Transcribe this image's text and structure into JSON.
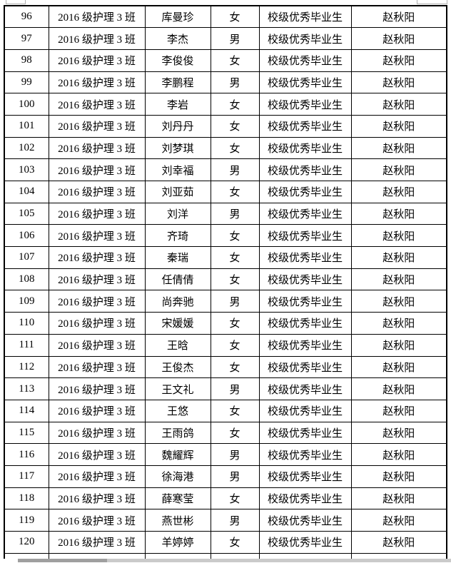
{
  "page": {
    "background": "#ffffff",
    "text_color": "#000000",
    "table_border_color": "#000000"
  },
  "table": {
    "rows": [
      {
        "no": "96",
        "class_name": "2016 级护理 3 班",
        "name": "库曼珍",
        "gender": "女",
        "award": "校级优秀毕业生",
        "advisor": "赵秋阳"
      },
      {
        "no": "97",
        "class_name": "2016 级护理 3 班",
        "name": "李杰",
        "gender": "男",
        "award": "校级优秀毕业生",
        "advisor": "赵秋阳"
      },
      {
        "no": "98",
        "class_name": "2016 级护理 3 班",
        "name": "李俊俊",
        "gender": "女",
        "award": "校级优秀毕业生",
        "advisor": "赵秋阳"
      },
      {
        "no": "99",
        "class_name": "2016 级护理 3 班",
        "name": "李鹏程",
        "gender": "男",
        "award": "校级优秀毕业生",
        "advisor": "赵秋阳"
      },
      {
        "no": "100",
        "class_name": "2016 级护理 3 班",
        "name": "李岩",
        "gender": "女",
        "award": "校级优秀毕业生",
        "advisor": "赵秋阳"
      },
      {
        "no": "101",
        "class_name": "2016 级护理 3 班",
        "name": "刘丹丹",
        "gender": "女",
        "award": "校级优秀毕业生",
        "advisor": "赵秋阳"
      },
      {
        "no": "102",
        "class_name": "2016 级护理 3 班",
        "name": "刘梦琪",
        "gender": "女",
        "award": "校级优秀毕业生",
        "advisor": "赵秋阳"
      },
      {
        "no": "103",
        "class_name": "2016 级护理 3 班",
        "name": "刘幸福",
        "gender": "男",
        "award": "校级优秀毕业生",
        "advisor": "赵秋阳"
      },
      {
        "no": "104",
        "class_name": "2016 级护理 3 班",
        "name": "刘亚茹",
        "gender": "女",
        "award": "校级优秀毕业生",
        "advisor": "赵秋阳"
      },
      {
        "no": "105",
        "class_name": "2016 级护理 3 班",
        "name": "刘洋",
        "gender": "男",
        "award": "校级优秀毕业生",
        "advisor": "赵秋阳"
      },
      {
        "no": "106",
        "class_name": "2016 级护理 3 班",
        "name": "齐琦",
        "gender": "女",
        "award": "校级优秀毕业生",
        "advisor": "赵秋阳"
      },
      {
        "no": "107",
        "class_name": "2016 级护理 3 班",
        "name": "秦瑞",
        "gender": "女",
        "award": "校级优秀毕业生",
        "advisor": "赵秋阳"
      },
      {
        "no": "108",
        "class_name": "2016 级护理 3 班",
        "name": "任倩倩",
        "gender": "女",
        "award": "校级优秀毕业生",
        "advisor": "赵秋阳"
      },
      {
        "no": "109",
        "class_name": "2016 级护理 3 班",
        "name": "尚奔驰",
        "gender": "男",
        "award": "校级优秀毕业生",
        "advisor": "赵秋阳"
      },
      {
        "no": "110",
        "class_name": "2016 级护理 3 班",
        "name": "宋媛媛",
        "gender": "女",
        "award": "校级优秀毕业生",
        "advisor": "赵秋阳"
      },
      {
        "no": "111",
        "class_name": "2016 级护理 3 班",
        "name": "王晗",
        "gender": "女",
        "award": "校级优秀毕业生",
        "advisor": "赵秋阳"
      },
      {
        "no": "112",
        "class_name": "2016 级护理 3 班",
        "name": "王俊杰",
        "gender": "女",
        "award": "校级优秀毕业生",
        "advisor": "赵秋阳"
      },
      {
        "no": "113",
        "class_name": "2016 级护理 3 班",
        "name": "王文礼",
        "gender": "男",
        "award": "校级优秀毕业生",
        "advisor": "赵秋阳"
      },
      {
        "no": "114",
        "class_name": "2016 级护理 3 班",
        "name": "王悠",
        "gender": "女",
        "award": "校级优秀毕业生",
        "advisor": "赵秋阳"
      },
      {
        "no": "115",
        "class_name": "2016 级护理 3 班",
        "name": "王雨鸽",
        "gender": "女",
        "award": "校级优秀毕业生",
        "advisor": "赵秋阳"
      },
      {
        "no": "116",
        "class_name": "2016 级护理 3 班",
        "name": "魏耀辉",
        "gender": "男",
        "award": "校级优秀毕业生",
        "advisor": "赵秋阳"
      },
      {
        "no": "117",
        "class_name": "2016 级护理 3 班",
        "name": "徐海港",
        "gender": "男",
        "award": "校级优秀毕业生",
        "advisor": "赵秋阳"
      },
      {
        "no": "118",
        "class_name": "2016 级护理 3 班",
        "name": "薛寒莹",
        "gender": "女",
        "award": "校级优秀毕业生",
        "advisor": "赵秋阳"
      },
      {
        "no": "119",
        "class_name": "2016 级护理 3 班",
        "name": "燕世彬",
        "gender": "男",
        "award": "校级优秀毕业生",
        "advisor": "赵秋阳"
      },
      {
        "no": "120",
        "class_name": "2016 级护理 3 班",
        "name": "羊婷婷",
        "gender": "女",
        "award": "校级优秀毕业生",
        "advisor": "赵秋阳"
      }
    ]
  },
  "artifacts": {
    "corner_remnant_color": "#b0b0b0",
    "bottom_shadow_dark": "#9f9f9f",
    "bottom_shadow_light": "#cacaca"
  }
}
